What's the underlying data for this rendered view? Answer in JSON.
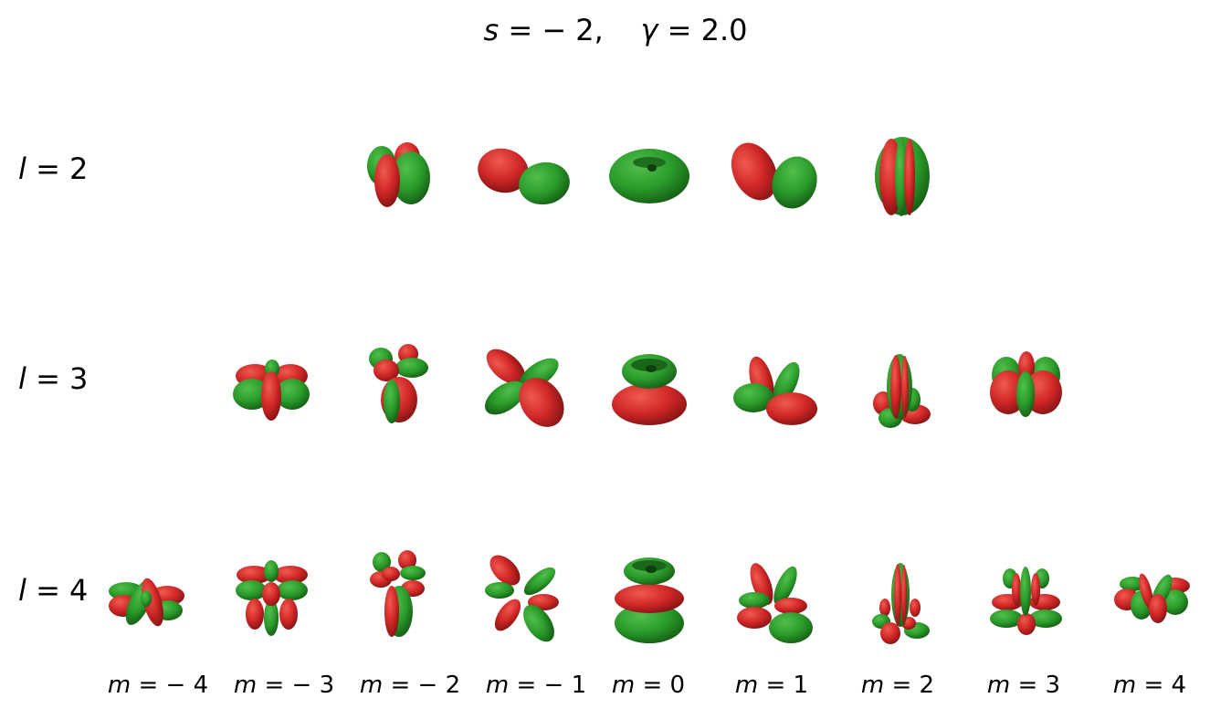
{
  "title": {
    "s_var": "s",
    "s_rest": " = − 2,",
    "gap": "    ",
    "g_var": "γ",
    "g_rest": " = 2.0"
  },
  "rows": [
    {
      "var": "l",
      "rest": " = 2"
    },
    {
      "var": "l",
      "rest": " = 3"
    },
    {
      "var": "l",
      "rest": " = 4"
    }
  ],
  "columns": [
    {
      "var": "m",
      "rest": " = − 4"
    },
    {
      "var": "m",
      "rest": " = − 3"
    },
    {
      "var": "m",
      "rest": " = − 2"
    },
    {
      "var": "m",
      "rest": " = − 1"
    },
    {
      "var": "m",
      "rest": " = 0"
    },
    {
      "var": "m",
      "rest": " = 1"
    },
    {
      "var": "m",
      "rest": " = 2"
    },
    {
      "var": "m",
      "rest": " = 3"
    },
    {
      "var": "m",
      "rest": " = 4"
    }
  ],
  "colors": {
    "positive_lobe": "#d42a2a",
    "negative_lobe": "#2a9a2a"
  }
}
